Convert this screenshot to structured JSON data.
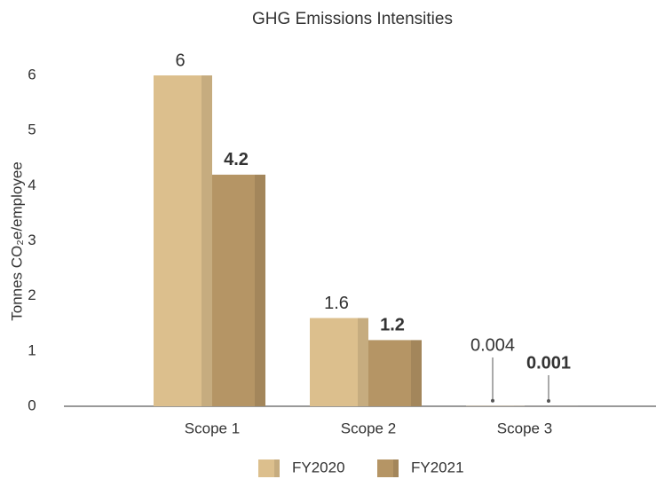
{
  "chart_data": {
    "type": "bar",
    "title": "GHG Emissions Intensities",
    "y_label": "Tonnes CO₂e/employee",
    "categories": [
      "Scope 1",
      "Scope 2",
      "Scope 3"
    ],
    "series": [
      {
        "name": "FY2020",
        "color": "#dcbf8d",
        "values": [
          6,
          1.6,
          0.004
        ]
      },
      {
        "name": "FY2021",
        "color": "#b59565",
        "values": [
          4.2,
          1.2,
          0.001
        ]
      }
    ],
    "ylim": [
      0,
      6
    ],
    "yticks": [
      0,
      1,
      2,
      3,
      4,
      5,
      6
    ],
    "grid": false,
    "legend": "bottom"
  }
}
